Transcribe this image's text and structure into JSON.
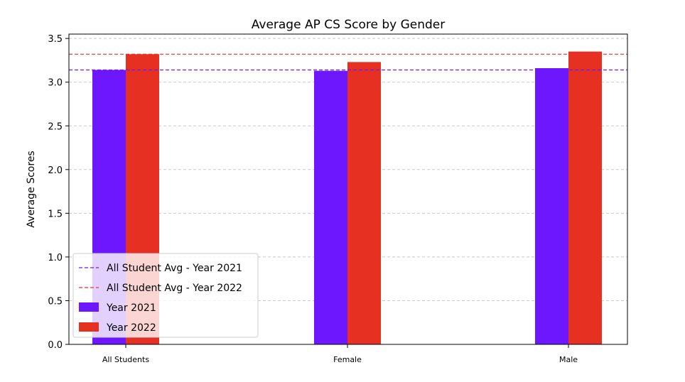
{
  "chart_data": {
    "type": "bar",
    "title": "Average AP CS Score by Gender",
    "xlabel": "",
    "ylabel": "Average Scores",
    "categories": [
      "All Students",
      "Female",
      "Male"
    ],
    "series": [
      {
        "name": "Year 2021",
        "color": "#6d17ff",
        "values": [
          3.14,
          3.13,
          3.16
        ]
      },
      {
        "name": "Year 2022",
        "color": "#e63122",
        "values": [
          3.32,
          3.23,
          3.35
        ]
      }
    ],
    "reference_lines": [
      {
        "name": "All Student Avg - Year 2021",
        "value": 3.14,
        "color": "#6d17ff",
        "style": "dashed"
      },
      {
        "name": "All Student Avg - Year 2022",
        "value": 3.32,
        "color": "#e63122",
        "style": "dashed"
      }
    ],
    "ylim": [
      0,
      3.5
    ],
    "yticks": [
      "0.0",
      "0.5",
      "1.0",
      "1.5",
      "2.0",
      "2.5",
      "3.0",
      "3.5"
    ],
    "grid": "horizontal dashed",
    "legend_position": "lower-left"
  }
}
